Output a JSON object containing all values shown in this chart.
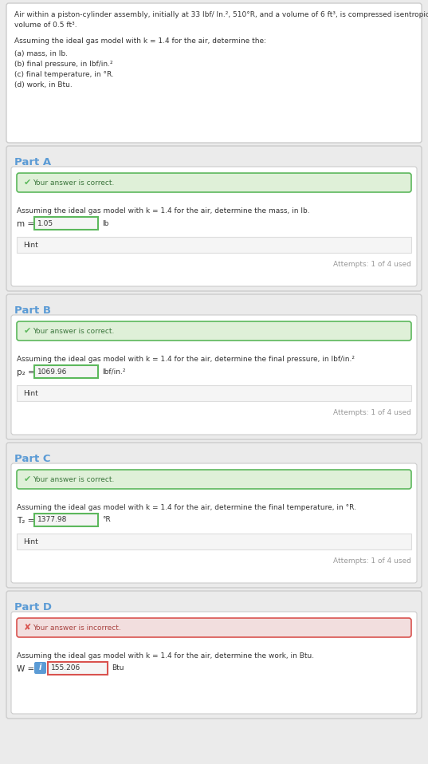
{
  "problem_text_line1": "Air within a piston-cylinder assembly, initially at 33 lbf/ In.², 510°R, and a volume of 6 ft³, is compressed isentropically to a final",
  "problem_text_line2": "volume of 0.5 ft³.",
  "assumption_text": "Assuming the ideal gas model with k = 1.4 for the air, determine the:",
  "parts_list": [
    "(a) mass, in lb.",
    "(b) final pressure, in lbf/in.²",
    "(c) final temperature, in °R.",
    "(d) work, in Btu."
  ],
  "parts": [
    {
      "title": "Part A",
      "status": "correct",
      "status_text": "Your answer is correct.",
      "question_text": "Assuming the ideal gas model with k = 1.4 for the air, determine the mass, in lb.",
      "var_label": "m =",
      "answer": "1.05",
      "unit": "lb",
      "has_hint": true,
      "hint_text": "Hint",
      "attempts_text": "Attempts: 1 of 4 used",
      "has_info_icon": false
    },
    {
      "title": "Part B",
      "status": "correct",
      "status_text": "Your answer is correct.",
      "question_text": "Assuming the ideal gas model with k = 1.4 for the air, determine the final pressure, in lbf/in.²",
      "var_label": "p₂ =",
      "answer": "1069.96",
      "unit": "lbf/in.²",
      "has_hint": true,
      "hint_text": "Hint",
      "attempts_text": "Attempts: 1 of 4 used",
      "has_info_icon": false
    },
    {
      "title": "Part C",
      "status": "correct",
      "status_text": "Your answer is correct.",
      "question_text": "Assuming the ideal gas model with k = 1.4 for the air, determine the final temperature, in °R.",
      "var_label": "T₂ =",
      "answer": "1377.98",
      "unit": "°R",
      "has_hint": true,
      "hint_text": "Hint",
      "attempts_text": "Attempts: 1 of 4 used",
      "has_info_icon": false
    },
    {
      "title": "Part D",
      "status": "incorrect",
      "status_text": "Your answer is incorrect.",
      "question_text": "Assuming the ideal gas model with k = 1.4 for the air, determine the work, in Btu.",
      "var_label": "W =",
      "answer": "155.206",
      "unit": "Btu",
      "has_hint": false,
      "hint_text": "",
      "attempts_text": "",
      "has_info_icon": true
    }
  ],
  "bg_color": "#ebebeb",
  "card_bg": "#ffffff",
  "correct_bg": "#dff0d8",
  "correct_border": "#5cb85c",
  "correct_text": "#3c763d",
  "correct_icon_color": "#5cb85c",
  "incorrect_bg": "#f2dede",
  "incorrect_border": "#d9534f",
  "incorrect_text": "#a94442",
  "incorrect_icon_color": "#d9534f",
  "part_title_color": "#5b9bd5",
  "text_color": "#333333",
  "hint_bg": "#f5f5f5",
  "hint_border": "#dddddd",
  "input_border_correct": "#5cb85c",
  "input_border_incorrect": "#d9534f",
  "input_bg": "#f5f5f5",
  "attempts_color": "#999999",
  "info_icon_bg": "#5b9bd5",
  "info_icon_color": "#ffffff",
  "separator_color": "#cccccc",
  "outer_border_color": "#cccccc"
}
